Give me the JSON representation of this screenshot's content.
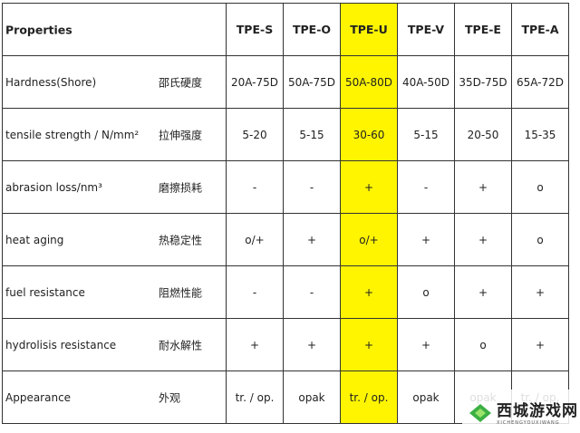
{
  "table": {
    "header": {
      "property": "Properties",
      "columns": [
        "TPE-S",
        "TPE-O",
        "TPE-U",
        "TPE-V",
        "TPE-E",
        "TPE-A"
      ]
    },
    "highlight_column": "TPE-U",
    "highlight_color": "#fff500",
    "rows": [
      {
        "en": "Hardness(Shore)",
        "zh": "邵氏硬度",
        "values": [
          "20A-75D",
          "50A-75D",
          "50A-80D",
          "40A-50D",
          "35D-75D",
          "65A-72D"
        ]
      },
      {
        "en": "tensile strength / N/mm²",
        "zh": "拉伸强度",
        "values": [
          "5-20",
          "5-15",
          "30-60",
          "5-15",
          "20-50",
          "15-35"
        ]
      },
      {
        "en": "abrasion loss/nm³",
        "zh": "磨擦损耗",
        "values": [
          "-",
          "-",
          "+",
          "-",
          "+",
          "o"
        ]
      },
      {
        "en": "heat aging",
        "zh": "热稳定性",
        "values": [
          "o/+",
          "+",
          "o/+",
          "+",
          "+",
          "o"
        ]
      },
      {
        "en": "fuel resistance",
        "zh": "阻燃性能",
        "values": [
          "-",
          "-",
          "+",
          "o",
          "+",
          "+"
        ]
      },
      {
        "en": "hydrolisis resistance",
        "zh": "耐水解性",
        "values": [
          "+",
          "+",
          "+",
          "+",
          "o",
          "+"
        ]
      },
      {
        "en": "Appearance",
        "zh": "外观",
        "values": [
          "tr. / op.",
          "opak",
          "tr. / op.",
          "opak",
          "opak",
          "tr. / op."
        ]
      }
    ]
  },
  "watermark": {
    "name": "西城游戏网",
    "pinyin": "XICHENGYOUXIWANG",
    "icon": "green-leaf-logo-icon"
  }
}
